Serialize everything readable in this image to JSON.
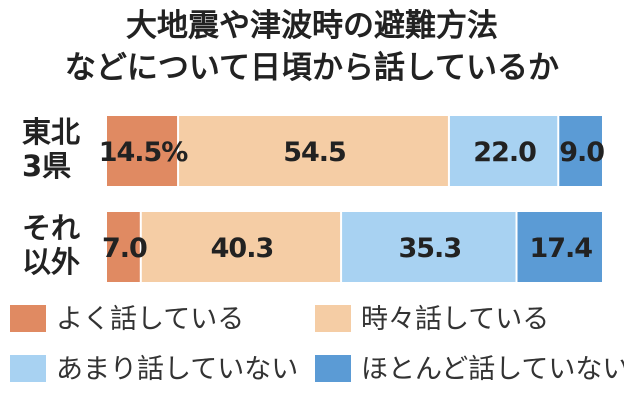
{
  "chart_data": {
    "type": "bar",
    "stacked": true,
    "orientation": "horizontal",
    "title_lines": [
      "大地震や津波時の避難方法",
      "などについて日頃から話しているか"
    ],
    "categories": [
      {
        "lines": [
          "東北",
          "3県"
        ]
      },
      {
        "lines": [
          "それ",
          "以外"
        ]
      }
    ],
    "series": [
      {
        "name": "よく話している",
        "color": "#e08a62",
        "values": [
          14.5,
          7.0
        ],
        "labels": [
          "14.5%",
          "7.0"
        ]
      },
      {
        "name": "時々話している",
        "color": "#f5cda5",
        "values": [
          54.5,
          40.3
        ],
        "labels": [
          "54.5",
          "40.3"
        ]
      },
      {
        "name": "あまり話していない",
        "color": "#a8d2f2",
        "values": [
          22.0,
          35.3
        ],
        "labels": [
          "22.0",
          "35.3"
        ]
      },
      {
        "name": "ほとんど話していない",
        "color": "#5b9bd5",
        "values": [
          9.0,
          17.4
        ],
        "labels": [
          "9.0",
          "17.4"
        ]
      }
    ],
    "xlim": [
      0,
      100
    ],
    "legend_position": "bottom",
    "grid": false
  }
}
